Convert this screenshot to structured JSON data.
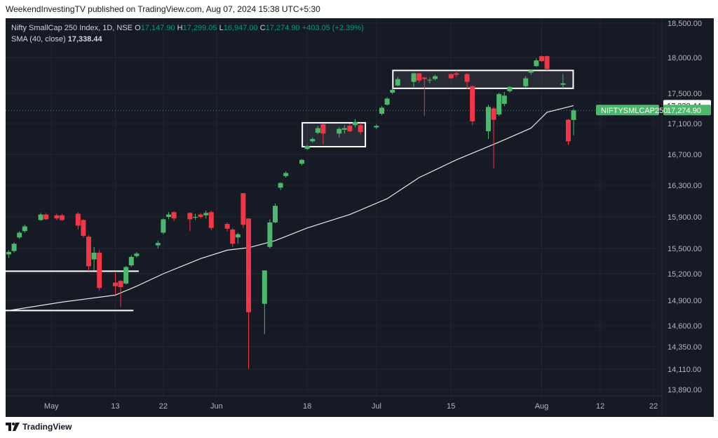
{
  "header": {
    "caption": "WeekendInvestingTV published on TradingView.com, Aug 07, 2024 15:38 UTC+5:30"
  },
  "legend": {
    "symbol": "Nifty SmallCap 250 Index, 1D, NSE",
    "o_label": "O",
    "o_val": "17,147.90",
    "h_label": "H",
    "h_val": "17,299.05",
    "l_label": "L",
    "l_val": "16,947.00",
    "c_label": "C",
    "c_val": "17,274.90",
    "change": "+403.05 (+2.39%)",
    "sma_label": "SMA (40, close)",
    "sma_val": "17,338.44"
  },
  "footer": {
    "brand": "TradingView"
  },
  "colors": {
    "background": "#161a25",
    "up": "#4cb86b",
    "down": "#f23645",
    "sma": "#e8e8e8",
    "grid": "#232733",
    "axis_text": "#b2b5be"
  },
  "chart_data": {
    "type": "candlestick",
    "y_ticks": [
      13890,
      14110,
      14350,
      14600,
      14900,
      15200,
      15500,
      15900,
      16300,
      16700,
      17100,
      17500,
      18000,
      18500
    ],
    "y_tick_labels": [
      "13,890.00",
      "14,110.00",
      "14,350.00",
      "14,600.00",
      "14,900.00",
      "15,200.00",
      "15,500.00",
      "15,900.00",
      "16,300.00",
      "16,700.00",
      "17,100.00",
      "17,500.00",
      "18,000.00",
      "18,500.00"
    ],
    "ylim": [
      13800,
      18600
    ],
    "x_ticks": [
      {
        "label": "May",
        "date": "2024-05-01"
      },
      {
        "label": "13",
        "date": "2024-05-13"
      },
      {
        "label": "22",
        "date": "2024-05-22"
      },
      {
        "label": "Jun",
        "date": "2024-06-01"
      },
      {
        "label": "18",
        "date": "2024-06-18"
      },
      {
        "label": "Jul",
        "date": "2024-07-01"
      },
      {
        "label": "15",
        "date": "2024-07-15"
      },
      {
        "label": "Aug",
        "date": "2024-08-01"
      },
      {
        "label": "12",
        "date": "2024-08-12"
      },
      {
        "label": "22",
        "date": "2024-08-22"
      }
    ],
    "candles": [
      {
        "date": "2024-04-23",
        "o": 15430,
        "h": 15480,
        "l": 15390,
        "c": 15460
      },
      {
        "date": "2024-04-24",
        "o": 15470,
        "h": 15580,
        "l": 15450,
        "c": 15560
      },
      {
        "date": "2024-04-25",
        "o": 15640,
        "h": 15720,
        "l": 15620,
        "c": 15700
      },
      {
        "date": "2024-04-26",
        "o": 15720,
        "h": 15800,
        "l": 15700,
        "c": 15780
      },
      {
        "date": "2024-04-29",
        "o": 15860,
        "h": 15950,
        "l": 15850,
        "c": 15930
      },
      {
        "date": "2024-04-30",
        "o": 15930,
        "h": 15950,
        "l": 15860,
        "c": 15870
      },
      {
        "date": "2024-05-02",
        "o": 15920,
        "h": 15940,
        "l": 15860,
        "c": 15880
      },
      {
        "date": "2024-05-03",
        "o": 15920,
        "h": 15940,
        "l": 15850,
        "c": 15860
      },
      {
        "date": "2024-05-06",
        "o": 15940,
        "h": 15960,
        "l": 15740,
        "c": 15790
      },
      {
        "date": "2024-05-07",
        "o": 15860,
        "h": 15870,
        "l": 15640,
        "c": 15660
      },
      {
        "date": "2024-05-08",
        "o": 15650,
        "h": 15670,
        "l": 15230,
        "c": 15290
      },
      {
        "date": "2024-05-09",
        "o": 15370,
        "h": 15520,
        "l": 15240,
        "c": 15450
      },
      {
        "date": "2024-05-10",
        "o": 15450,
        "h": 15480,
        "l": 15010,
        "c": 15040
      },
      {
        "date": "2024-05-13",
        "o": 15100,
        "h": 15210,
        "l": 14960,
        "c": 15060
      },
      {
        "date": "2024-05-14",
        "o": 15120,
        "h": 15130,
        "l": 14820,
        "c": 15050
      },
      {
        "date": "2024-05-15",
        "o": 15090,
        "h": 15290,
        "l": 15080,
        "c": 15280
      },
      {
        "date": "2024-05-16",
        "o": 15300,
        "h": 15420,
        "l": 15280,
        "c": 15400
      },
      {
        "date": "2024-05-17",
        "o": 15410,
        "h": 15460,
        "l": 15390,
        "c": 15440
      },
      {
        "date": "2024-05-21",
        "o": 15540,
        "h": 15600,
        "l": 15500,
        "c": 15570
      },
      {
        "date": "2024-05-22",
        "o": 15700,
        "h": 15880,
        "l": 15680,
        "c": 15870
      },
      {
        "date": "2024-05-23",
        "o": 15900,
        "h": 15960,
        "l": 15870,
        "c": 15930
      },
      {
        "date": "2024-05-24",
        "o": 15960,
        "h": 15970,
        "l": 15850,
        "c": 15880
      },
      {
        "date": "2024-05-27",
        "o": 15950,
        "h": 15960,
        "l": 15720,
        "c": 15870
      },
      {
        "date": "2024-05-28",
        "o": 15890,
        "h": 15940,
        "l": 15860,
        "c": 15900
      },
      {
        "date": "2024-05-29",
        "o": 15930,
        "h": 15950,
        "l": 15880,
        "c": 15900
      },
      {
        "date": "2024-05-30",
        "o": 15920,
        "h": 15980,
        "l": 15880,
        "c": 15950
      },
      {
        "date": "2024-05-31",
        "o": 15960,
        "h": 15980,
        "l": 15730,
        "c": 15760
      },
      {
        "date": "2024-06-03",
        "o": 15810,
        "h": 15830,
        "l": 15720,
        "c": 15750
      },
      {
        "date": "2024-06-04",
        "o": 15740,
        "h": 15760,
        "l": 15520,
        "c": 15560
      },
      {
        "date": "2024-06-05",
        "o": 15640,
        "h": 15700,
        "l": 15560,
        "c": 15680
      },
      {
        "date": "2024-06-06",
        "o": 16200,
        "h": 16200,
        "l": 15760,
        "c": 15800
      },
      {
        "date": "2024-06-07",
        "o": 15880,
        "h": 15880,
        "l": 14110,
        "c": 14760
      },
      {
        "date": "2024-06-10",
        "o": 14860,
        "h": 15240,
        "l": 14500,
        "c": 15240
      },
      {
        "date": "2024-06-11",
        "o": 15520,
        "h": 15870,
        "l": 15500,
        "c": 15830
      },
      {
        "date": "2024-06-12",
        "o": 15830,
        "h": 16070,
        "l": 15820,
        "c": 16040
      },
      {
        "date": "2024-06-13",
        "o": 16270,
        "h": 16340,
        "l": 16240,
        "c": 16330
      },
      {
        "date": "2024-06-14",
        "o": 16420,
        "h": 16480,
        "l": 16400,
        "c": 16460
      },
      {
        "date": "2024-06-17",
        "o": 16580,
        "h": 16640,
        "l": 16560,
        "c": 16630
      },
      {
        "date": "2024-06-18",
        "o": 16770,
        "h": 16820,
        "l": 16760,
        "c": 16810
      },
      {
        "date": "2024-06-19",
        "o": 16870,
        "h": 16920,
        "l": 16850,
        "c": 16900
      },
      {
        "date": "2024-06-20",
        "o": 16980,
        "h": 17070,
        "l": 16960,
        "c": 17040
      },
      {
        "date": "2024-06-21",
        "o": 17090,
        "h": 17100,
        "l": 16830,
        "c": 16970
      },
      {
        "date": "2024-06-24",
        "o": 16970,
        "h": 17050,
        "l": 16920,
        "c": 17030
      },
      {
        "date": "2024-06-25",
        "o": 17020,
        "h": 17080,
        "l": 16970,
        "c": 17040
      },
      {
        "date": "2024-06-26",
        "o": 17070,
        "h": 17100,
        "l": 16990,
        "c": 17000
      },
      {
        "date": "2024-06-27",
        "o": 17080,
        "h": 17160,
        "l": 17050,
        "c": 17120
      },
      {
        "date": "2024-06-28",
        "o": 17080,
        "h": 17110,
        "l": 16960,
        "c": 16990
      },
      {
        "date": "2024-07-01",
        "o": 17050,
        "h": 17090,
        "l": 17030,
        "c": 17070
      },
      {
        "date": "2024-07-02",
        "o": 17230,
        "h": 17330,
        "l": 17210,
        "c": 17310
      },
      {
        "date": "2024-07-03",
        "o": 17350,
        "h": 17450,
        "l": 17340,
        "c": 17430
      },
      {
        "date": "2024-07-04",
        "o": 17510,
        "h": 17560,
        "l": 17490,
        "c": 17550
      },
      {
        "date": "2024-07-05",
        "o": 17610,
        "h": 17730,
        "l": 17600,
        "c": 17700
      },
      {
        "date": "2024-07-08",
        "o": 17660,
        "h": 17790,
        "l": 17590,
        "c": 17780
      },
      {
        "date": "2024-07-09",
        "o": 17780,
        "h": 17790,
        "l": 17650,
        "c": 17680
      },
      {
        "date": "2024-07-10",
        "o": 17720,
        "h": 17730,
        "l": 17200,
        "c": 17700
      },
      {
        "date": "2024-07-11",
        "o": 17680,
        "h": 17720,
        "l": 17640,
        "c": 17690
      },
      {
        "date": "2024-07-12",
        "o": 17700,
        "h": 17760,
        "l": 17680,
        "c": 17740
      },
      {
        "date": "2024-07-15",
        "o": 17770,
        "h": 17780,
        "l": 17700,
        "c": 17710
      },
      {
        "date": "2024-07-16",
        "o": 17780,
        "h": 17820,
        "l": 17730,
        "c": 17760
      },
      {
        "date": "2024-07-18",
        "o": 17770,
        "h": 17780,
        "l": 17560,
        "c": 17660
      },
      {
        "date": "2024-07-19",
        "o": 17600,
        "h": 17610,
        "l": 17080,
        "c": 17130
      },
      {
        "date": "2024-07-22",
        "o": 17000,
        "h": 17350,
        "l": 16900,
        "c": 17320
      },
      {
        "date": "2024-07-23",
        "o": 17300,
        "h": 17320,
        "l": 16520,
        "c": 17150
      },
      {
        "date": "2024-07-24",
        "o": 17220,
        "h": 17510,
        "l": 17200,
        "c": 17490
      },
      {
        "date": "2024-07-25",
        "o": 17360,
        "h": 17520,
        "l": 17330,
        "c": 17470
      },
      {
        "date": "2024-07-26",
        "o": 17530,
        "h": 17600,
        "l": 17510,
        "c": 17590
      },
      {
        "date": "2024-07-29",
        "o": 17600,
        "h": 17740,
        "l": 17580,
        "c": 17710
      },
      {
        "date": "2024-07-30",
        "o": 17790,
        "h": 17830,
        "l": 17760,
        "c": 17820
      },
      {
        "date": "2024-07-31",
        "o": 17880,
        "h": 17990,
        "l": 17870,
        "c": 17960
      },
      {
        "date": "2024-08-01",
        "o": 18020,
        "h": 18030,
        "l": 17940,
        "c": 17950
      },
      {
        "date": "2024-08-02",
        "o": 18020,
        "h": 18030,
        "l": 17820,
        "c": 17840
      },
      {
        "date": "2024-08-05",
        "o": 17620,
        "h": 17770,
        "l": 17570,
        "c": 17640
      },
      {
        "date": "2024-08-06",
        "o": 17150,
        "h": 17160,
        "l": 16820,
        "c": 16870
      },
      {
        "date": "2024-08-07",
        "o": 17147.9,
        "h": 17299.05,
        "l": 16947,
        "c": 17274.9
      }
    ],
    "sma": {
      "name": "SMA (40, close)",
      "points": [
        {
          "date": "2024-04-23",
          "v": 14780
        },
        {
          "date": "2024-05-03",
          "v": 14880
        },
        {
          "date": "2024-05-13",
          "v": 14960
        },
        {
          "date": "2024-05-17",
          "v": 15060
        },
        {
          "date": "2024-05-22",
          "v": 15200
        },
        {
          "date": "2024-05-29",
          "v": 15380
        },
        {
          "date": "2024-06-03",
          "v": 15480
        },
        {
          "date": "2024-06-07",
          "v": 15510
        },
        {
          "date": "2024-06-12",
          "v": 15600
        },
        {
          "date": "2024-06-18",
          "v": 15760
        },
        {
          "date": "2024-06-26",
          "v": 15930
        },
        {
          "date": "2024-07-03",
          "v": 16130
        },
        {
          "date": "2024-07-09",
          "v": 16400
        },
        {
          "date": "2024-07-16",
          "v": 16630
        },
        {
          "date": "2024-07-24",
          "v": 16860
        },
        {
          "date": "2024-07-30",
          "v": 17040
        },
        {
          "date": "2024-08-02",
          "v": 17250
        },
        {
          "date": "2024-08-07",
          "v": 17338.44
        }
      ]
    },
    "horizontal_lines": [
      {
        "price": 15230,
        "from": "2024-04-23",
        "to": "2024-05-17"
      },
      {
        "price": 14780,
        "from": "2024-04-23",
        "to": "2024-05-16"
      }
    ],
    "boxes": [
      {
        "from": "2024-06-18",
        "to": "2024-06-28",
        "top": 17110,
        "bottom": 16800
      },
      {
        "from": "2024-07-05",
        "to": "2024-08-06",
        "top": 17820,
        "bottom": 17570
      }
    ],
    "price_labels": [
      {
        "text": "17,338.44",
        "price": 17338.44,
        "style": "sma"
      },
      {
        "text": "17,274.90",
        "price": 17274.9,
        "style": "last",
        "name": "NIFTYSMLCAP250"
      }
    ],
    "last_price": 17274.9
  }
}
